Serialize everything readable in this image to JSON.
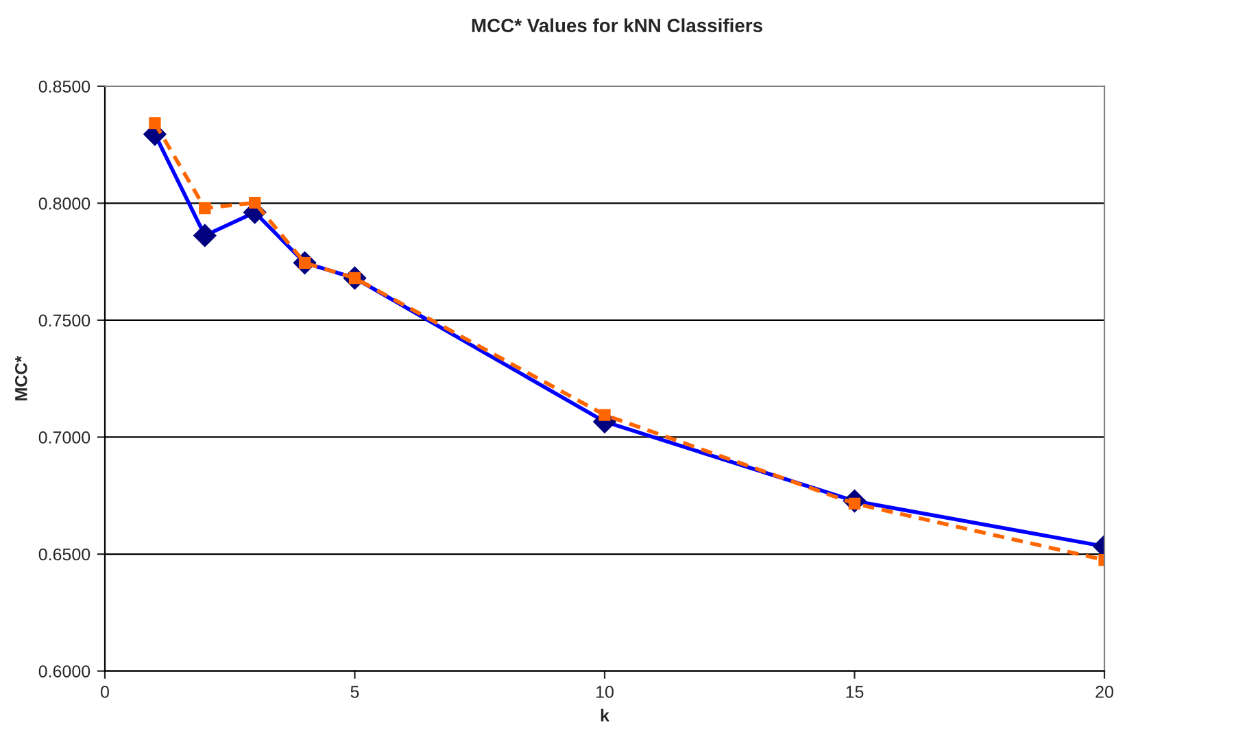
{
  "chart_data": {
    "type": "line",
    "title": "MCC* Values for kNN Classifiers",
    "xlabel": "k",
    "ylabel": "MCC*",
    "x": [
      1,
      2,
      3,
      4,
      5,
      10,
      15,
      20
    ],
    "series": [
      {
        "color": "#0000ff",
        "marker": "diamond",
        "line_style": "solid",
        "values": [
          0.8295,
          0.7862,
          0.7961,
          0.7745,
          0.768,
          0.7066,
          0.6727,
          0.6533
        ]
      },
      {
        "color": "#ff6600",
        "marker": "square",
        "line_style": "dashed",
        "values": [
          0.8342,
          0.7979,
          0.8002,
          0.7745,
          0.768,
          0.7095,
          0.6716,
          0.6475
        ]
      }
    ],
    "xlim": [
      0,
      20
    ],
    "xticks": [
      0,
      5,
      10,
      15,
      20
    ],
    "ylim": [
      0.6,
      0.85
    ],
    "yticks": [
      {
        "value": 0.6,
        "label": "0.6000"
      },
      {
        "value": 0.65,
        "label": "0.6500"
      },
      {
        "value": 0.7,
        "label": "0.7000"
      },
      {
        "value": 0.75,
        "label": "0.7500"
      },
      {
        "value": 0.8,
        "label": "0.8000"
      },
      {
        "value": 0.85,
        "label": "0.8500"
      }
    ],
    "grid": "y"
  }
}
